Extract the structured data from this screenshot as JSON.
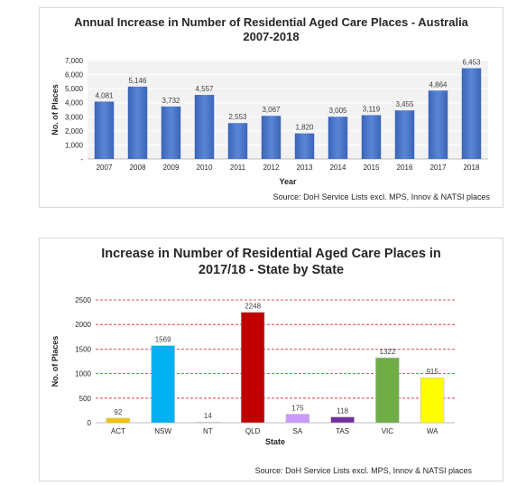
{
  "chart_data": [
    {
      "type": "bar",
      "title_line1": "Annual Increase in Number of Residential Aged Care Places - Australia",
      "title_line2": "2007-2018",
      "xlabel": "Year",
      "ylabel": "No. of Places",
      "categories": [
        "2007",
        "2008",
        "2009",
        "2010",
        "2011",
        "2012",
        "2013",
        "2014",
        "2015",
        "2016",
        "2017",
        "2018"
      ],
      "values": [
        4081,
        5146,
        3732,
        4557,
        2553,
        3067,
        1820,
        3005,
        3119,
        3455,
        4864,
        6453
      ],
      "value_labels": [
        "4,081",
        "5,146",
        "3,732",
        "4,557",
        "2,553",
        "3,067",
        "1,820",
        "3,005",
        "3,119",
        "3,455",
        "4,864",
        "6,453"
      ],
      "ylim": [
        0,
        7000
      ],
      "yticks": [
        0,
        1000,
        2000,
        3000,
        4000,
        5000,
        6000,
        7000
      ],
      "ytick_labels": [
        "-",
        "1,000",
        "2,000",
        "3,000",
        "4,000",
        "5,000",
        "6,000",
        "7,000"
      ],
      "grid": true,
      "colors": [
        "#4472c4"
      ],
      "source": "Source: DoH Service Lists excl. MPS, Innov & NATSI places"
    },
    {
      "type": "bar",
      "title_line1": "Increase in Number of Residential Aged Care Places in",
      "title_line2": "2017/18 - State by State",
      "xlabel": "State",
      "ylabel": "No. of Places",
      "categories": [
        "ACT",
        "NSW",
        "NT",
        "QLD",
        "SA",
        "TAS",
        "VIC",
        "WA"
      ],
      "values": [
        92,
        1569,
        14,
        2248,
        175,
        118,
        1322,
        915
      ],
      "value_labels": [
        "92",
        "1569",
        "14",
        "2248",
        "175",
        "118",
        "1322",
        "915"
      ],
      "ylim": [
        0,
        2500
      ],
      "yticks": [
        0,
        500,
        1000,
        1500,
        2000,
        2500
      ],
      "ytick_labels": [
        "0",
        "500",
        "1000",
        "1500",
        "2000",
        "2500"
      ],
      "grid": true,
      "grid_style": "dashed-red",
      "colors": [
        "#f5c400",
        "#00b0f0",
        "#ffffff",
        "#c00000",
        "#cc99ff",
        "#7030a0",
        "#70ad47",
        "#ffff00"
      ],
      "source": "Source: DoH Service Lists excl. MPS, Innov & NATSI places"
    }
  ]
}
